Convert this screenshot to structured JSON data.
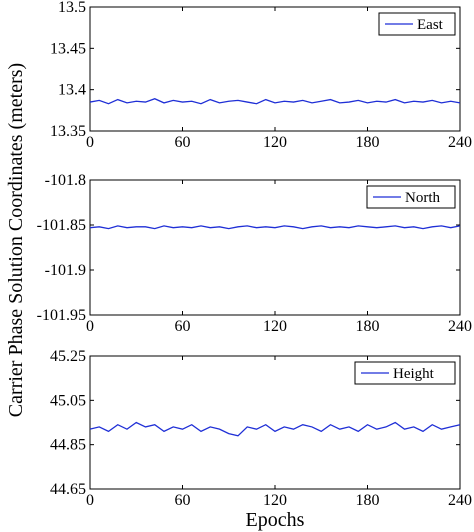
{
  "figure": {
    "ylabel": "Carrier Phase Solution Coordinates (meters)",
    "xlabel": "Epochs"
  },
  "chart_data": [
    {
      "type": "line",
      "legend": "East",
      "legend_placement": "top-right",
      "line_color": "#1f2fd6",
      "xlim": [
        0,
        240
      ],
      "ylim": [
        13.35,
        13.5
      ],
      "xticks": [
        "0",
        "60",
        "120",
        "180",
        "240"
      ],
      "yticks": [
        "13.35",
        "13.4",
        "13.45",
        "13.5"
      ],
      "series": [
        {
          "x": [
            0,
            6,
            12,
            18,
            24,
            30,
            36,
            42,
            48,
            54,
            60,
            66,
            72,
            78,
            84,
            90,
            96,
            102,
            108,
            114,
            120,
            126,
            132,
            138,
            144,
            150,
            156,
            162,
            168,
            174,
            180,
            186,
            192,
            198,
            204,
            210,
            216,
            222,
            228,
            234,
            240
          ],
          "values": [
            13.385,
            13.387,
            13.383,
            13.388,
            13.384,
            13.386,
            13.385,
            13.389,
            13.384,
            13.387,
            13.385,
            13.386,
            13.383,
            13.388,
            13.384,
            13.386,
            13.387,
            13.385,
            13.383,
            13.388,
            13.384,
            13.386,
            13.385,
            13.387,
            13.384,
            13.386,
            13.388,
            13.384,
            13.385,
            13.387,
            13.384,
            13.386,
            13.385,
            13.388,
            13.384,
            13.386,
            13.385,
            13.387,
            13.384,
            13.386,
            13.384
          ]
        }
      ]
    },
    {
      "type": "line",
      "legend": "North",
      "legend_placement": "top-right",
      "line_color": "#1f2fd6",
      "xlim": [
        0,
        240
      ],
      "ylim": [
        -101.95,
        -101.8
      ],
      "xticks": [
        "0",
        "60",
        "120",
        "180",
        "240"
      ],
      "yticks": [
        "-101.95",
        "-101.9",
        "-101.85",
        "-101.8"
      ],
      "series": [
        {
          "x": [
            0,
            6,
            12,
            18,
            24,
            30,
            36,
            42,
            48,
            54,
            60,
            66,
            72,
            78,
            84,
            90,
            96,
            102,
            108,
            114,
            120,
            126,
            132,
            138,
            144,
            150,
            156,
            162,
            168,
            174,
            180,
            186,
            192,
            198,
            204,
            210,
            216,
            222,
            228,
            234,
            240
          ],
          "values": [
            -101.853,
            -101.852,
            -101.854,
            -101.851,
            -101.853,
            -101.852,
            -101.852,
            -101.854,
            -101.851,
            -101.853,
            -101.852,
            -101.853,
            -101.851,
            -101.853,
            -101.852,
            -101.854,
            -101.852,
            -101.851,
            -101.853,
            -101.852,
            -101.853,
            -101.851,
            -101.852,
            -101.854,
            -101.852,
            -101.851,
            -101.853,
            -101.852,
            -101.853,
            -101.851,
            -101.852,
            -101.853,
            -101.852,
            -101.851,
            -101.853,
            -101.852,
            -101.854,
            -101.852,
            -101.851,
            -101.853,
            -101.851
          ]
        }
      ]
    },
    {
      "type": "line",
      "legend": "Height",
      "legend_placement": "top-right",
      "line_color": "#1f2fd6",
      "xlim": [
        0,
        240
      ],
      "ylim": [
        44.65,
        45.25
      ],
      "xticks": [
        "0",
        "60",
        "120",
        "180",
        "240"
      ],
      "yticks": [
        "44.65",
        "44.85",
        "45.05",
        "45.25"
      ],
      "series": [
        {
          "x": [
            0,
            6,
            12,
            18,
            24,
            30,
            36,
            42,
            48,
            54,
            60,
            66,
            72,
            78,
            84,
            90,
            96,
            102,
            108,
            114,
            120,
            126,
            132,
            138,
            144,
            150,
            156,
            162,
            168,
            174,
            180,
            186,
            192,
            198,
            204,
            210,
            216,
            222,
            228,
            234,
            240
          ],
          "values": [
            44.92,
            44.93,
            44.91,
            44.94,
            44.92,
            44.95,
            44.93,
            44.94,
            44.91,
            44.93,
            44.92,
            44.94,
            44.91,
            44.93,
            44.92,
            44.9,
            44.89,
            44.93,
            44.92,
            44.94,
            44.91,
            44.93,
            44.92,
            44.94,
            44.93,
            44.91,
            44.94,
            44.92,
            44.93,
            44.91,
            44.94,
            44.92,
            44.93,
            44.95,
            44.92,
            44.93,
            44.91,
            44.94,
            44.92,
            44.93,
            44.94
          ]
        }
      ]
    }
  ]
}
